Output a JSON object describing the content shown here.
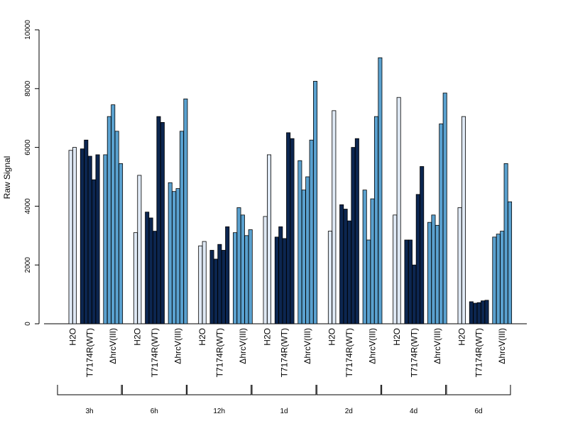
{
  "chart_data": {
    "type": "bar",
    "ylabel": "Raw Signal",
    "xlabel": "",
    "ylim": [
      0,
      10000
    ],
    "yticks": [
      0,
      2000,
      4000,
      6000,
      8000,
      10000
    ],
    "grid": false,
    "legend": "none",
    "bar_categories": [
      "H2O",
      "T7174R(WT)",
      "ΔhrcV(III)"
    ],
    "bar_colors": {
      "H2O": "#dfe9f5",
      "T7174R(WT)": "#0c2650",
      "ΔhrcV(III)": "#5aa1cf"
    },
    "groups": [
      {
        "label": "3h",
        "H2O": [
          5900,
          6000
        ],
        "T7174R(WT)": [
          5950,
          6250,
          5700,
          4900,
          5750
        ],
        "ΔhrcV(III)": [
          5750,
          7050,
          7450,
          6550,
          5450
        ]
      },
      {
        "label": "6h",
        "H2O": [
          3100,
          5050
        ],
        "T7174R(WT)": [
          3800,
          3600,
          3150,
          7050,
          6850
        ],
        "ΔhrcV(III)": [
          4800,
          4500,
          4600,
          6550,
          7650
        ]
      },
      {
        "label": "12h",
        "H2O": [
          2650,
          2800
        ],
        "T7174R(WT)": [
          2500,
          2200,
          2700,
          2500,
          3300
        ],
        "ΔhrcV(III)": [
          3100,
          3950,
          3700,
          3000,
          3200
        ]
      },
      {
        "label": "1d",
        "H2O": [
          3650,
          5750
        ],
        "T7174R(WT)": [
          2950,
          3300,
          2900,
          6500,
          6300
        ],
        "ΔhrcV(III)": [
          5550,
          4550,
          5000,
          6250,
          8250
        ]
      },
      {
        "label": "2d",
        "H2O": [
          3150,
          7250
        ],
        "T7174R(WT)": [
          4050,
          3900,
          3500,
          6000,
          6300
        ],
        "ΔhrcV(III)": [
          4550,
          2850,
          4250,
          7050,
          9050
        ]
      },
      {
        "label": "4d",
        "H2O": [
          3700,
          7700
        ],
        "T7174R(WT)": [
          2850,
          2850,
          2000,
          4400,
          5350
        ],
        "ΔhrcV(III)": [
          3450,
          3700,
          3350,
          6800,
          7850
        ]
      },
      {
        "label": "6d",
        "H2O": [
          3950,
          7050
        ],
        "T7174R(WT)": [
          750,
          700,
          720,
          780,
          800
        ],
        "ΔhrcV(III)": [
          2950,
          3050,
          3150,
          5450,
          4150
        ]
      }
    ]
  }
}
